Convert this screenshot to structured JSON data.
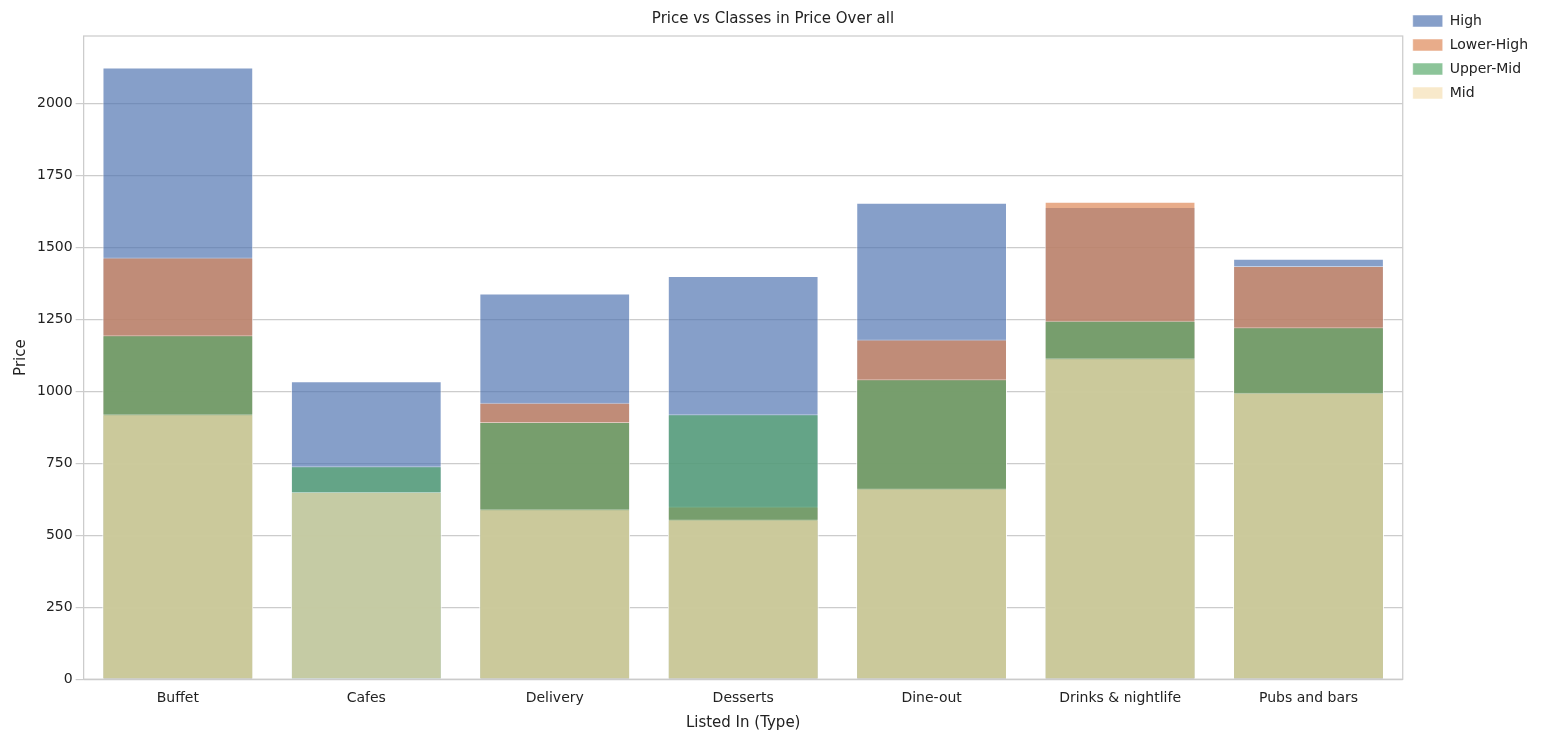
{
  "chart_data": {
    "type": "bar",
    "title": "Price vs Classes in Price Over all",
    "x_label": "Listed In (Type)",
    "y_label": "Price",
    "categories": [
      "Buffet",
      "Cafes",
      "Delivery",
      "Desserts",
      "Dine-out",
      "Drinks & nightlife",
      "Pubs and bars"
    ],
    "series": [
      {
        "name": "High",
        "color": "#4c72b0",
        "values": [
          2125,
          1035,
          1340,
          1400,
          1655,
          1640,
          1460
        ]
      },
      {
        "name": "Lower-High",
        "color": "#dd8452",
        "values": [
          1465,
          null,
          960,
          600,
          1180,
          1658,
          1435
        ]
      },
      {
        "name": "Upper-Mid",
        "color": "#55a868",
        "values": [
          1195,
          740,
          893,
          920,
          1042,
          1245,
          1222
        ]
      },
      {
        "name": "Mid",
        "color": "#f5deb3",
        "values": [
          920,
          650,
          590,
          555,
          662,
          1115,
          995
        ]
      }
    ],
    "ylim": [
      0,
      2234
    ],
    "yticks": [
      0,
      250,
      500,
      750,
      1000,
      1250,
      1500,
      1750,
      2000
    ],
    "grid": true,
    "legend": "upper right"
  }
}
